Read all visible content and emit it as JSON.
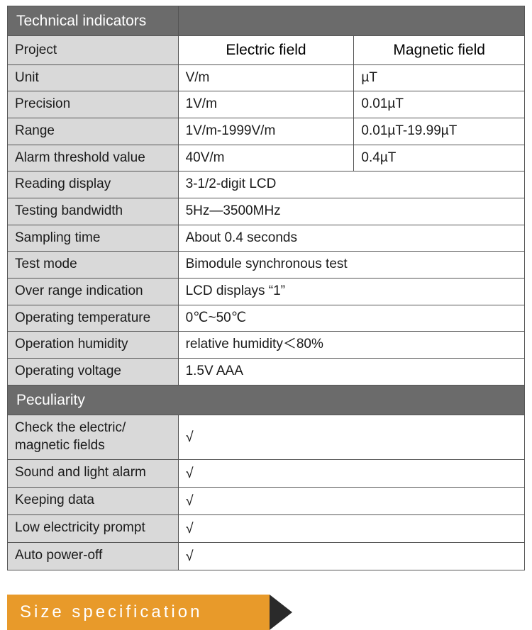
{
  "colors": {
    "section_header_bg": "#6b6b6b",
    "section_header_fg": "#ffffff",
    "label_bg": "#d9d9d9",
    "value_bg": "#ffffff",
    "border": "#555555",
    "size_bar_bg": "#e89a2a",
    "size_bar_fg": "#ffffff",
    "size_arrow": "#2a2a2a"
  },
  "table": {
    "section1_title": "Technical indicators",
    "col_project": "Project",
    "col_electric": "Electric field",
    "col_magnetic": "Magnetic field",
    "rows3": [
      {
        "label": "Unit",
        "e": "V/m",
        "m": "µT"
      },
      {
        "label": "Precision",
        "e": "1V/m",
        "m": "0.01µT"
      },
      {
        "label": "Range",
        "e": "1V/m-1999V/m",
        "m": "0.01µT-19.99µT"
      },
      {
        "label": "Alarm threshold value",
        "e": "40V/m",
        "m": "0.4µT"
      }
    ],
    "rows2": [
      {
        "label": "Reading display",
        "v": "3-1/2-digit LCD"
      },
      {
        "label": "Testing bandwidth",
        "v": "5Hz—3500MHz"
      },
      {
        "label": "Sampling time",
        "v": "About 0.4 seconds"
      },
      {
        "label": "Test mode",
        "v": "Bimodule synchronous test"
      },
      {
        "label": "Over range indication",
        "v": "LCD displays “1”"
      },
      {
        "label": "Operating temperature",
        "v": "0℃~50℃"
      },
      {
        "label": "Operation humidity",
        "v": "relative humidity＜80%"
      },
      {
        "label": "Operating voltage",
        "v": "1.5V AAA"
      }
    ],
    "section2_title": "Peculiarity",
    "peculiar": [
      {
        "label": "Check the electric/\nmagnetic fields",
        "v": "√"
      },
      {
        "label": "Sound and light alarm",
        "v": "√"
      },
      {
        "label": "Keeping data",
        "v": "√"
      },
      {
        "label": "Low electricity prompt",
        "v": "√"
      },
      {
        "label": "Auto power-off",
        "v": "√"
      }
    ]
  },
  "size_spec_label": "Size specification"
}
